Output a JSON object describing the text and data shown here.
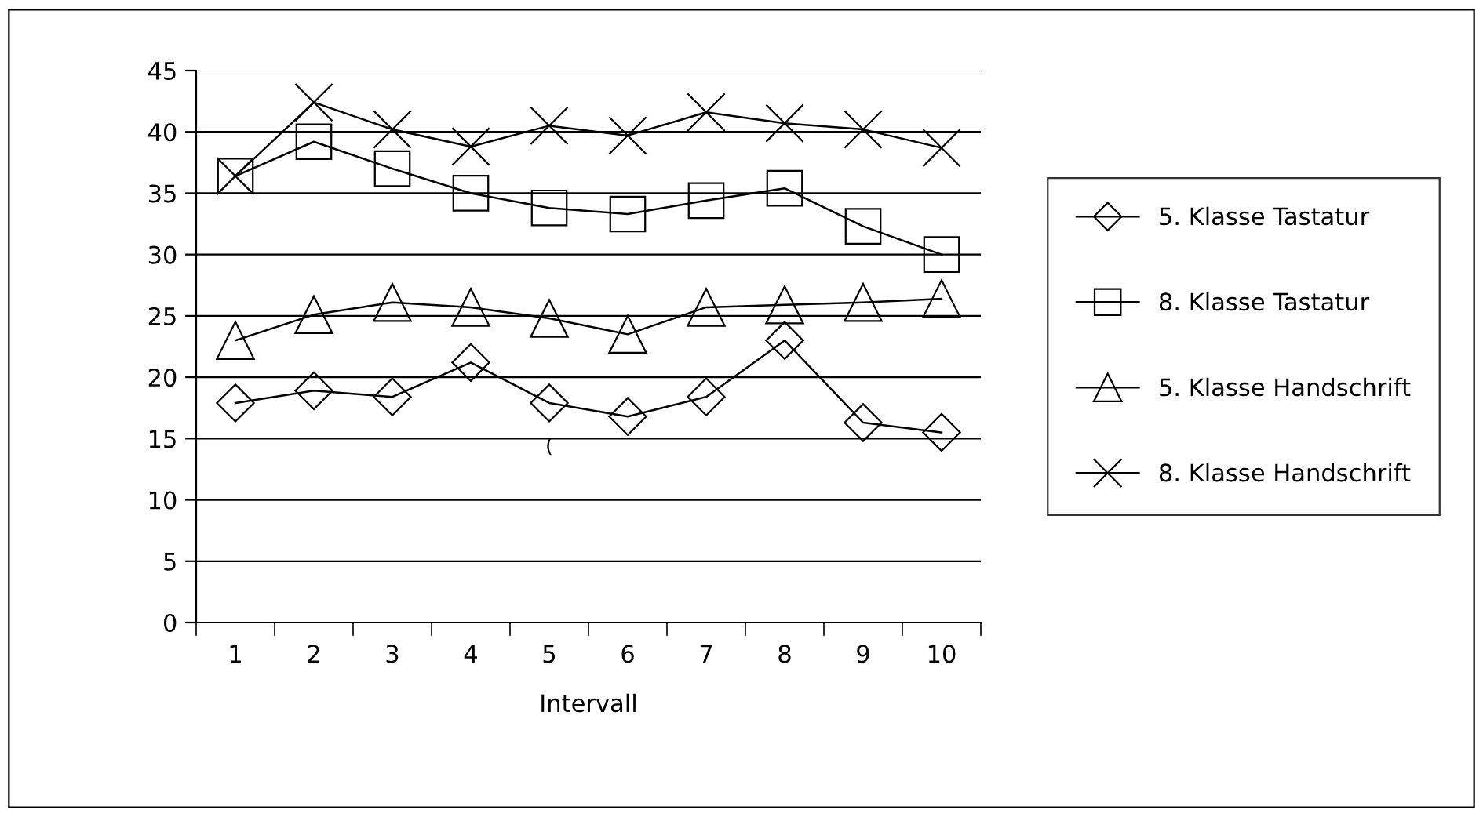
{
  "chart_data": {
    "type": "line",
    "xlabel": "Intervall",
    "categories": [
      "1",
      "2",
      "3",
      "4",
      "5",
      "6",
      "7",
      "8",
      "9",
      "10"
    ],
    "series": [
      {
        "name": "5. Klasse Tastatur",
        "color": "#000000",
        "marker": "diamond",
        "values": [
          17.9,
          18.9,
          18.4,
          21.2,
          17.9,
          16.8,
          18.4,
          23.0,
          16.3,
          15.5
        ]
      },
      {
        "name": "8. Klasse Tastatur",
        "color": "#000000",
        "marker": "square",
        "values": [
          36.4,
          39.2,
          37.0,
          35.0,
          33.8,
          33.3,
          34.4,
          35.4,
          32.3,
          30.0
        ]
      },
      {
        "name": "5. Klasse Handschrift",
        "color": "#000000",
        "marker": "triangle",
        "values": [
          23.0,
          25.1,
          26.1,
          25.7,
          24.8,
          23.5,
          25.7,
          25.9,
          26.1,
          26.4
        ]
      },
      {
        "name": "8. Klasse Handschrift",
        "color": "#000000",
        "marker": "cross",
        "values": [
          36.4,
          42.4,
          40.2,
          38.8,
          40.5,
          39.7,
          41.6,
          40.7,
          40.2,
          38.7
        ]
      }
    ],
    "ylim": [
      0,
      45
    ],
    "yticks": [
      0,
      5,
      10,
      15,
      20,
      25,
      30,
      35,
      40,
      45
    ],
    "grid": "y",
    "legend": "right",
    "line_style": "solid",
    "annotations": [
      "("
    ]
  }
}
